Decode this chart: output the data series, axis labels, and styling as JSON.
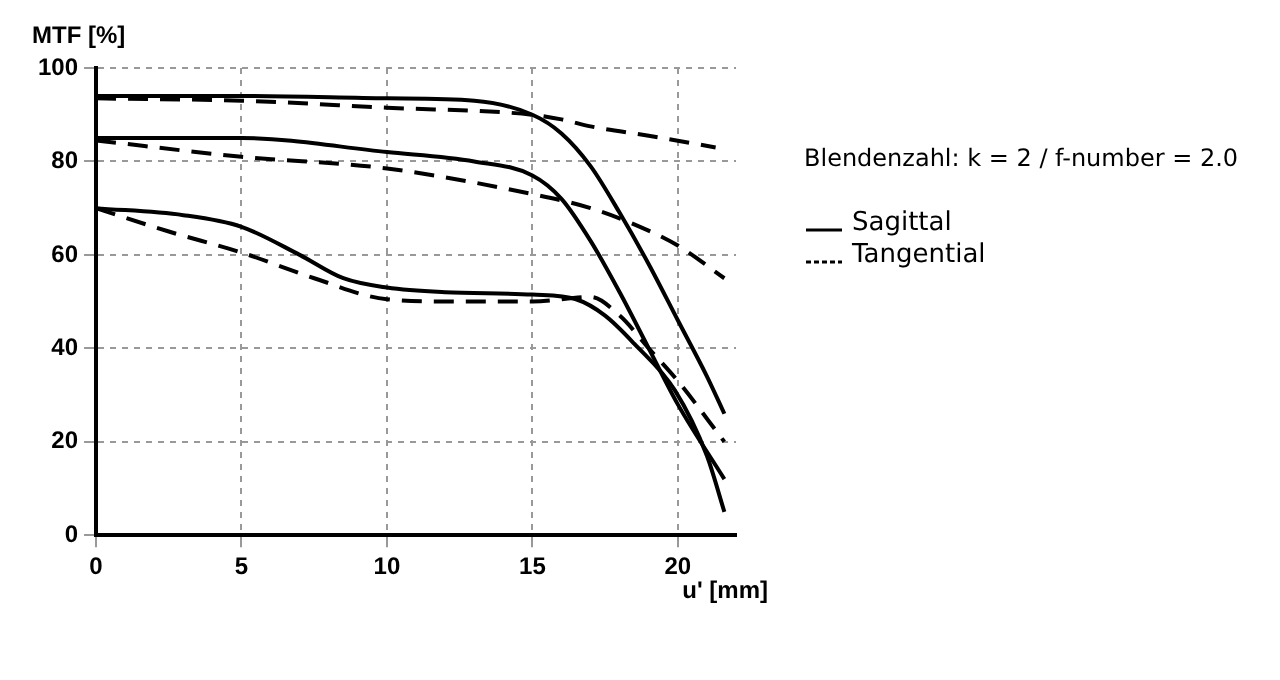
{
  "chart_data": {
    "type": "line",
    "xlabel": "u' [mm]",
    "ylabel": "MTF [%]",
    "annotations": [
      "Blendenzahl: k = 2 / f-number = 2.0"
    ],
    "xlim": [
      0,
      22
    ],
    "xticks": [
      0,
      5,
      10,
      15,
      20
    ],
    "ylim": [
      0,
      100
    ],
    "yticks": [
      0,
      20,
      40,
      60,
      80,
      100
    ],
    "grid": true,
    "legend": "right",
    "marker": "none",
    "series": [
      {
        "name": "Sagittal",
        "color": "#000000",
        "line_style": "solid",
        "x": [
          0,
          5,
          10,
          13,
          15,
          16,
          17,
          18,
          19,
          20,
          21,
          21.6
        ],
        "values": [
          94,
          94,
          93.5,
          93,
          90,
          86,
          79,
          69,
          58,
          46,
          34,
          26
        ]
      },
      {
        "name": "Tangential",
        "color": "#000000",
        "line_style": "dashed",
        "x": [
          0,
          5,
          10,
          15,
          16,
          17,
          19,
          21.3
        ],
        "values": [
          93.5,
          93,
          91.5,
          90,
          89,
          87.5,
          85.5,
          83
        ]
      },
      {
        "color": "#000000",
        "line_style": "solid",
        "x": [
          0,
          5,
          10,
          13,
          15,
          16,
          17,
          18,
          19,
          20,
          21.6
        ],
        "values": [
          85,
          85,
          82,
          80,
          77,
          72,
          63,
          52,
          40,
          28,
          12
        ]
      },
      {
        "color": "#000000",
        "line_style": "dashed",
        "x": [
          0,
          5,
          10,
          15,
          17,
          18.7,
          20,
          21.6
        ],
        "values": [
          84.5,
          81,
          78.5,
          73,
          70,
          66,
          62,
          55
        ]
      },
      {
        "color": "#000000",
        "line_style": "solid",
        "x": [
          0,
          3,
          5,
          7,
          8.5,
          10,
          12,
          15,
          16.5,
          17.5,
          18.5,
          19.9,
          21,
          21.6
        ],
        "values": [
          70,
          68.5,
          66,
          60,
          55,
          53,
          52,
          51.5,
          50.5,
          47,
          41,
          31,
          17,
          5
        ]
      },
      {
        "color": "#000000",
        "line_style": "dashed",
        "x": [
          0,
          2.5,
          5,
          7.5,
          10,
          12.5,
          15,
          17,
          18,
          19,
          20,
          21.6
        ],
        "values": [
          70,
          65,
          60.5,
          55,
          50.5,
          50,
          50,
          51,
          47,
          40,
          33,
          20
        ]
      }
    ]
  }
}
